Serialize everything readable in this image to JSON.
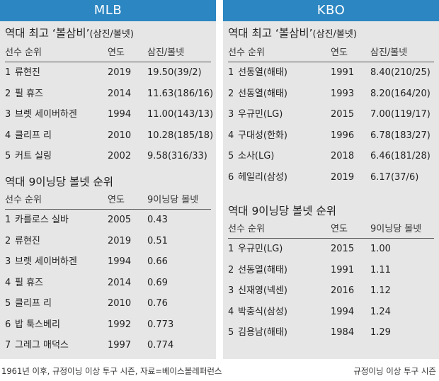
{
  "mlb": {
    "header": "MLB",
    "section1": {
      "title": "역대 최고 ‘볼삼비’",
      "subtitle": "(삼진/볼넷)",
      "columns": [
        "선수 순위",
        "연도",
        "삼진/볼넷"
      ],
      "rows": [
        {
          "rank": "1",
          "name": "류현진",
          "year": "2019",
          "value": "19.50(39/2)"
        },
        {
          "rank": "2",
          "name": "필 휴즈",
          "year": "2014",
          "value": "11.63(186/16)"
        },
        {
          "rank": "3",
          "name": "브렛 세이버하겐",
          "year": "1994",
          "value": "11.00(143/13)"
        },
        {
          "rank": "4",
          "name": "클리프 리",
          "year": "2010",
          "value": "10.28(185/18)"
        },
        {
          "rank": "5",
          "name": "커트 실링",
          "year": "2002",
          "value": "9.58(316/33)"
        }
      ]
    },
    "section2": {
      "title": "역대 9이닝당 볼넷 순위",
      "columns": [
        "선수 순위",
        "연도",
        "9이닝당 볼넷"
      ],
      "rows": [
        {
          "rank": "1",
          "name": "카를로스 실바",
          "year": "2005",
          "value": "0.43"
        },
        {
          "rank": "2",
          "name": "류현진",
          "year": "2019",
          "value": "0.51"
        },
        {
          "rank": "3",
          "name": "브렛 세이버하겐",
          "year": "1994",
          "value": "0.66"
        },
        {
          "rank": "4",
          "name": "필 휴즈",
          "year": "2014",
          "value": "0.69"
        },
        {
          "rank": "5",
          "name": "클리프 리",
          "year": "2010",
          "value": "0.76"
        },
        {
          "rank": "6",
          "name": "밥 툭스베리",
          "year": "1992",
          "value": "0.773"
        },
        {
          "rank": "7",
          "name": "그레그 매덕스",
          "year": "1997",
          "value": "0.774"
        }
      ]
    },
    "footnote": "1961년 이후, 규정이닝 이상 투구 시즌, 자료=베이스볼레퍼런스"
  },
  "kbo": {
    "header": "KBO",
    "section1": {
      "title": "역대 최고 ‘볼삼비’",
      "subtitle": "(삼진/볼넷)",
      "columns": [
        "선수 순위",
        "연도",
        "삼진/볼넷"
      ],
      "rows": [
        {
          "rank": "1",
          "name": "선동열(해태)",
          "year": "1991",
          "value": "8.40(210/25)"
        },
        {
          "rank": "2",
          "name": "선동열(해태)",
          "year": "1993",
          "value": "8.20(164/20)"
        },
        {
          "rank": "3",
          "name": "우규민(LG)",
          "year": "2015",
          "value": "7.00(119/17)"
        },
        {
          "rank": "4",
          "name": "구대성(한화)",
          "year": "1996",
          "value": "6.78(183/27)"
        },
        {
          "rank": "5",
          "name": "소사(LG)",
          "year": "2018",
          "value": "6.46(181/28)"
        },
        {
          "rank": "6",
          "name": "헤일리(삼성)",
          "year": "2019",
          "value": "6.17(37/6)"
        }
      ]
    },
    "section2": {
      "title": "역대 9이닝당 볼넷 순위",
      "columns": [
        "선수 순위",
        "연도",
        "9이닝당 볼넷"
      ],
      "rows": [
        {
          "rank": "1",
          "name": "우규민(LG)",
          "year": "2015",
          "value": "1.00"
        },
        {
          "rank": "2",
          "name": "선동열(해태)",
          "year": "1991",
          "value": "1.11"
        },
        {
          "rank": "3",
          "name": "신재영(넥센)",
          "year": "2016",
          "value": "1.12"
        },
        {
          "rank": "4",
          "name": "박충식(삼성)",
          "year": "1994",
          "value": "1.24"
        },
        {
          "rank": "5",
          "name": "김용남(해태)",
          "year": "1984",
          "value": "1.29"
        }
      ]
    },
    "footnote": "규정이닝 이상 투구 시즌"
  },
  "colors": {
    "header_bg": "#2b86c2",
    "panel_bg": "#e6e6e6"
  }
}
